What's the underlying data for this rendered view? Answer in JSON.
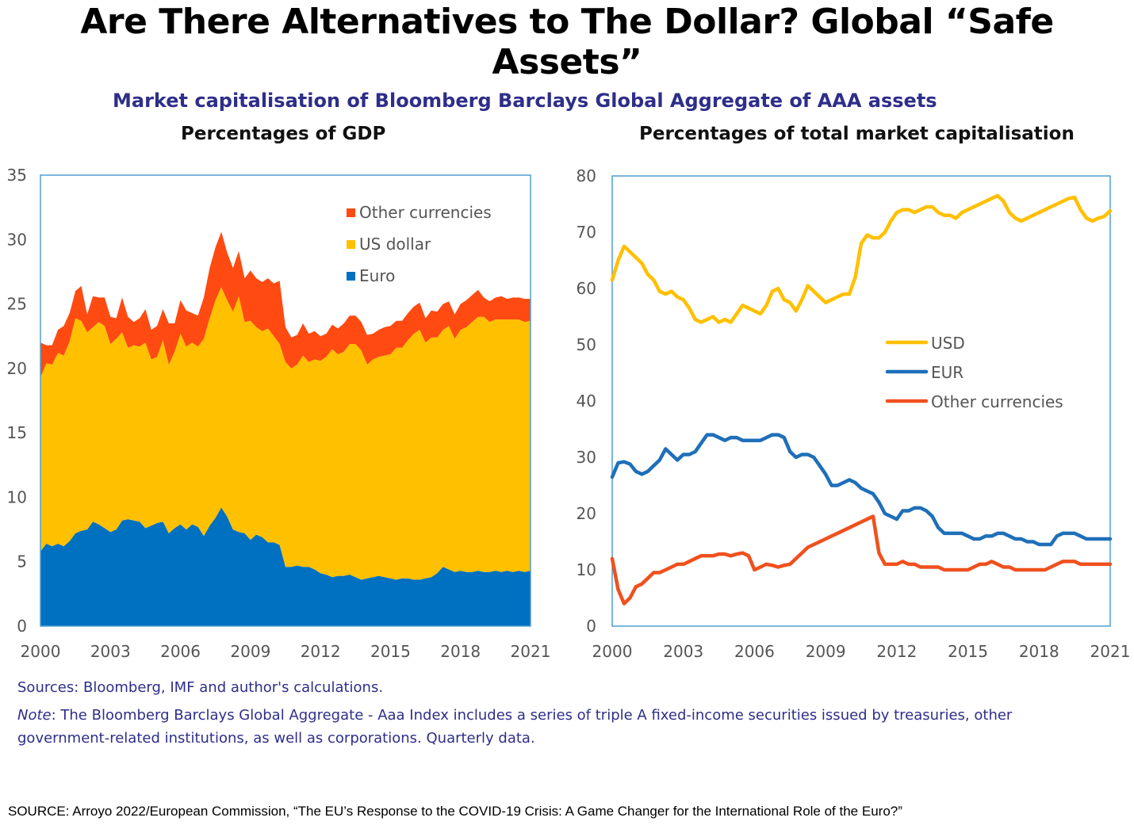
{
  "header": {
    "title": "Are There Alternatives to The Dollar? Global “Safe Assets”",
    "subtitle": "Market capitalisation of Bloomberg Barclays Global Aggregate of AAA assets"
  },
  "footer": {
    "sources": "Sources:  Bloomberg, IMF and author's calculations.",
    "note_label": "Note",
    "note_text": ": The Bloomberg Barclays Global Aggregate - Aaa Index includes a series of triple A fixed-income securities issued by treasuries, other government-related institutions, as well as corporations. Quarterly data.",
    "source_line": "SOURCE: Arroyo 2022/European Commission, “The EU’s Response to the COVID-19 Crisis: A Game Changer for the International Role of the Euro?”"
  },
  "colors": {
    "euro": "#0070c0",
    "us_dollar": "#ffc000",
    "other": "#ff4a12",
    "usd_line": "#ffc000",
    "eur_line": "#1f6fb8",
    "other_line": "#f0501e",
    "frame": "#4f9fd0",
    "title_blue": "#2e2e8a"
  },
  "chart_data": [
    {
      "type": "area",
      "stacked": true,
      "title": "Percentages of GDP",
      "xlim": [
        2000,
        2021
      ],
      "ylim": [
        0,
        35
      ],
      "yticks": [
        0,
        5,
        10,
        15,
        20,
        25,
        30,
        35
      ],
      "xticks": [
        "2000",
        "2003",
        "2006",
        "2009",
        "2012",
        "2015",
        "2018",
        "2021"
      ],
      "legend_position": "top-right",
      "x": [
        2000.0,
        2000.25,
        2000.5,
        2000.75,
        2001.0,
        2001.25,
        2001.5,
        2001.75,
        2002.0,
        2002.25,
        2002.5,
        2002.75,
        2003.0,
        2003.25,
        2003.5,
        2003.75,
        2004.0,
        2004.25,
        2004.5,
        2004.75,
        2005.0,
        2005.25,
        2005.5,
        2005.75,
        2006.0,
        2006.25,
        2006.5,
        2006.75,
        2007.0,
        2007.25,
        2007.5,
        2007.75,
        2008.0,
        2008.25,
        2008.5,
        2008.75,
        2009.0,
        2009.25,
        2009.5,
        2009.75,
        2010.0,
        2010.25,
        2010.5,
        2010.75,
        2011.0,
        2011.25,
        2011.5,
        2011.75,
        2012.0,
        2012.25,
        2012.5,
        2012.75,
        2013.0,
        2013.25,
        2013.5,
        2013.75,
        2014.0,
        2014.25,
        2014.5,
        2014.75,
        2015.0,
        2015.25,
        2015.5,
        2015.75,
        2016.0,
        2016.25,
        2016.5,
        2016.75,
        2017.0,
        2017.25,
        2017.5,
        2017.75,
        2018.0,
        2018.25,
        2018.5,
        2018.75,
        2019.0,
        2019.25,
        2019.5,
        2019.75,
        2020.0,
        2020.25,
        2020.5,
        2020.75,
        2021.0
      ],
      "series": [
        {
          "name": "Euro",
          "values": [
            5.8,
            6.4,
            6.2,
            6.4,
            6.2,
            6.6,
            7.2,
            7.4,
            7.5,
            8.1,
            7.9,
            7.6,
            7.3,
            7.5,
            8.2,
            8.3,
            8.2,
            8.1,
            7.6,
            7.8,
            8.0,
            8.1,
            7.2,
            7.6,
            7.9,
            7.5,
            7.9,
            7.7,
            7.0,
            7.8,
            8.4,
            9.2,
            8.5,
            7.5,
            7.3,
            7.2,
            6.7,
            7.1,
            6.9,
            6.5,
            6.5,
            6.3,
            4.6,
            4.6,
            4.7,
            4.6,
            4.6,
            4.4,
            4.1,
            4.0,
            3.8,
            3.9,
            3.9,
            4.0,
            3.8,
            3.6,
            3.7,
            3.8,
            3.9,
            3.8,
            3.7,
            3.6,
            3.7,
            3.7,
            3.6,
            3.6,
            3.7,
            3.8,
            4.1,
            4.6,
            4.4,
            4.2,
            4.3,
            4.2,
            4.2,
            4.3,
            4.2,
            4.2,
            4.3,
            4.2,
            4.3,
            4.2,
            4.3,
            4.2,
            4.3
          ]
        },
        {
          "name": "US dollar",
          "values": [
            13.5,
            14.0,
            14.1,
            14.8,
            14.8,
            15.5,
            16.7,
            16.3,
            15.3,
            15.1,
            15.7,
            15.7,
            14.6,
            14.8,
            14.6,
            13.3,
            13.6,
            13.6,
            14.4,
            12.9,
            12.9,
            14.1,
            13.1,
            13.7,
            14.8,
            14.2,
            14.1,
            14.0,
            15.3,
            16.1,
            16.9,
            17.1,
            16.8,
            16.9,
            18.3,
            16.4,
            17.0,
            16.1,
            16.0,
            16.6,
            16.0,
            15.6,
            15.9,
            15.4,
            15.6,
            16.4,
            15.9,
            16.3,
            16.5,
            16.9,
            17.7,
            17.2,
            17.4,
            17.9,
            18.1,
            17.8,
            16.6,
            16.9,
            17.0,
            17.2,
            17.4,
            18.0,
            17.9,
            18.5,
            19.1,
            19.4,
            18.3,
            18.6,
            18.3,
            18.4,
            18.9,
            18.1,
            18.7,
            19.0,
            19.4,
            19.7,
            19.8,
            19.4,
            19.5,
            19.6,
            19.5,
            19.6,
            19.5,
            19.4,
            19.4
          ]
        },
        {
          "name": "Other currencies",
          "values": [
            2.7,
            1.4,
            1.5,
            1.8,
            2.3,
            2.2,
            2.1,
            2.7,
            1.4,
            2.4,
            1.9,
            2.2,
            2.1,
            1.6,
            2.7,
            2.4,
            1.8,
            2.2,
            2.6,
            2.3,
            2.4,
            2.4,
            3.2,
            2.2,
            2.6,
            2.8,
            2.3,
            2.4,
            3.2,
            3.9,
            4.1,
            4.3,
            3.7,
            3.4,
            3.5,
            3.4,
            3.9,
            3.8,
            3.8,
            3.9,
            4.1,
            4.9,
            2.7,
            2.4,
            2.3,
            2.5,
            2.2,
            2.2,
            1.9,
            1.8,
            1.9,
            2.0,
            2.2,
            2.2,
            2.2,
            2.2,
            2.3,
            2.0,
            2.1,
            2.2,
            2.2,
            2.1,
            2.1,
            2.1,
            2.1,
            2.1,
            1.9,
            2.1,
            2.0,
            2.0,
            1.9,
            1.9,
            2.0,
            2.1,
            2.1,
            2.1,
            1.5,
            1.6,
            1.7,
            1.8,
            1.6,
            1.7,
            1.7,
            1.8,
            1.7
          ]
        }
      ]
    },
    {
      "type": "line",
      "title": "Percentages of total market capitalisation",
      "xlim": [
        2000,
        2021
      ],
      "ylim": [
        0,
        80
      ],
      "yticks": [
        0,
        10,
        20,
        30,
        40,
        50,
        60,
        70,
        80
      ],
      "xticks": [
        "2000",
        "2003",
        "2006",
        "2009",
        "2012",
        "2015",
        "2018",
        "2021"
      ],
      "legend_position": "center-right",
      "x": [
        2000.0,
        2000.25,
        2000.5,
        2000.75,
        2001.0,
        2001.25,
        2001.5,
        2001.75,
        2002.0,
        2002.25,
        2002.5,
        2002.75,
        2003.0,
        2003.25,
        2003.5,
        2003.75,
        2004.0,
        2004.25,
        2004.5,
        2004.75,
        2005.0,
        2005.25,
        2005.5,
        2005.75,
        2006.0,
        2006.25,
        2006.5,
        2006.75,
        2007.0,
        2007.25,
        2007.5,
        2007.75,
        2008.0,
        2008.25,
        2008.5,
        2008.75,
        2009.0,
        2009.25,
        2009.5,
        2009.75,
        2010.0,
        2010.25,
        2010.5,
        2010.75,
        2011.0,
        2011.25,
        2011.5,
        2011.75,
        2012.0,
        2012.25,
        2012.5,
        2012.75,
        2013.0,
        2013.25,
        2013.5,
        2013.75,
        2014.0,
        2014.25,
        2014.5,
        2014.75,
        2015.0,
        2015.25,
        2015.5,
        2015.75,
        2016.0,
        2016.25,
        2016.5,
        2016.75,
        2017.0,
        2017.25,
        2017.5,
        2017.75,
        2018.0,
        2018.25,
        2018.5,
        2018.75,
        2019.0,
        2019.25,
        2019.5,
        2019.75,
        2020.0,
        2020.25,
        2020.5,
        2020.75,
        2021.0
      ],
      "series": [
        {
          "name": "USD",
          "values": [
            61.5,
            65.0,
            67.5,
            66.5,
            65.5,
            64.5,
            62.5,
            61.5,
            59.5,
            59.0,
            59.5,
            58.5,
            58.0,
            56.5,
            54.5,
            54.0,
            54.5,
            55.0,
            54.0,
            54.5,
            54.0,
            55.5,
            57.0,
            56.5,
            56.0,
            55.5,
            57.0,
            59.5,
            60.0,
            58.0,
            57.5,
            56.0,
            58.0,
            60.5,
            59.5,
            58.5,
            57.5,
            58.0,
            58.5,
            59.0,
            59.0,
            62.0,
            68.0,
            69.5,
            69.0,
            69.0,
            70.0,
            72.0,
            73.5,
            74.0,
            74.0,
            73.5,
            74.0,
            74.5,
            74.5,
            73.5,
            73.0,
            73.0,
            72.5,
            73.5,
            74.0,
            74.5,
            75.0,
            75.5,
            76.0,
            76.5,
            75.5,
            73.5,
            72.5,
            72.0,
            72.5,
            73.0,
            73.5,
            74.0,
            74.5,
            75.0,
            75.5,
            76.0,
            76.2,
            74.0,
            72.5,
            72.0,
            72.5,
            72.8,
            73.8
          ]
        },
        {
          "name": "EUR",
          "values": [
            26.5,
            29.0,
            29.2,
            28.8,
            27.5,
            27.0,
            27.5,
            28.5,
            29.5,
            31.5,
            30.5,
            29.5,
            30.5,
            30.5,
            31.0,
            32.5,
            34.0,
            34.0,
            33.5,
            33.0,
            33.5,
            33.5,
            33.0,
            33.0,
            33.0,
            33.0,
            33.5,
            34.0,
            34.0,
            33.5,
            31.0,
            30.0,
            30.5,
            30.5,
            30.0,
            28.5,
            27.0,
            25.0,
            25.0,
            25.5,
            26.0,
            25.5,
            24.5,
            24.0,
            23.5,
            22.0,
            20.0,
            19.5,
            19.0,
            20.5,
            20.5,
            21.0,
            21.0,
            20.5,
            19.5,
            17.5,
            16.5,
            16.5,
            16.5,
            16.5,
            16.0,
            15.5,
            15.5,
            16.0,
            16.0,
            16.5,
            16.5,
            16.0,
            15.5,
            15.5,
            15.0,
            15.0,
            14.5,
            14.5,
            14.5,
            16.0,
            16.5,
            16.5,
            16.5,
            16.0,
            15.5,
            15.5,
            15.5,
            15.5,
            15.5
          ]
        },
        {
          "name": "Other currencies",
          "values": [
            12.0,
            6.5,
            4.0,
            5.0,
            7.0,
            7.5,
            8.5,
            9.5,
            9.5,
            10.0,
            10.5,
            11.0,
            11.0,
            11.5,
            12.0,
            12.5,
            12.5,
            12.5,
            12.8,
            12.8,
            12.5,
            12.8,
            13.0,
            12.5,
            10.0,
            10.5,
            11.0,
            10.8,
            10.5,
            10.8,
            11.0,
            12.0,
            13.0,
            14.0,
            14.5,
            15.0,
            15.5,
            16.0,
            16.5,
            17.0,
            17.5,
            18.0,
            18.5,
            19.0,
            19.5,
            13.0,
            11.0,
            11.0,
            11.0,
            11.5,
            11.0,
            11.0,
            10.5,
            10.5,
            10.5,
            10.5,
            10.0,
            10.0,
            10.0,
            10.0,
            10.0,
            10.5,
            11.0,
            11.0,
            11.5,
            11.0,
            10.5,
            10.5,
            10.0,
            10.0,
            10.0,
            10.0,
            10.0,
            10.0,
            10.5,
            11.0,
            11.5,
            11.5,
            11.5,
            11.0,
            11.0,
            11.0,
            11.0,
            11.0,
            11.0
          ]
        }
      ]
    }
  ]
}
